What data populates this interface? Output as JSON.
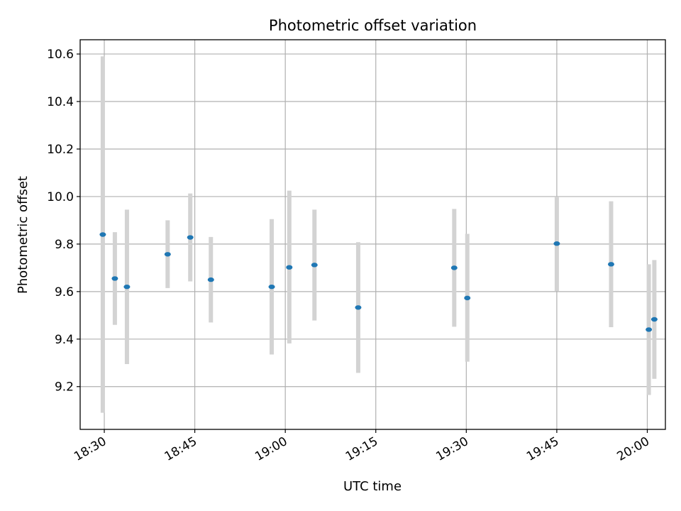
{
  "chart_data": {
    "type": "scatter",
    "title": "Photometric offset variation",
    "xlabel": "UTC time",
    "ylabel": "Photometric offset",
    "x_unit": "HH:MM UTC",
    "xlim": [
      "18:26",
      "20:03"
    ],
    "ylim": [
      9.02,
      10.66
    ],
    "x_ticks": [
      "18:30",
      "18:45",
      "19:00",
      "19:15",
      "19:30",
      "19:45",
      "20:00"
    ],
    "y_ticks": [
      9.2,
      9.4,
      9.6,
      9.8,
      10.0,
      10.2,
      10.4,
      10.6
    ],
    "y_tick_labels": [
      "9.2",
      "9.4",
      "9.6",
      "9.8",
      "10.0",
      "10.2",
      "10.4",
      "10.6"
    ],
    "grid": true,
    "marker_color": "#1f77b4",
    "errorbar_color": "#d3d3d3",
    "points": [
      {
        "x": "18:29:45",
        "y": 9.84,
        "yerr_low": 9.09,
        "yerr_high": 10.59
      },
      {
        "x": "18:31:45",
        "y": 9.655,
        "yerr_low": 9.46,
        "yerr_high": 9.85
      },
      {
        "x": "18:33:45",
        "y": 9.62,
        "yerr_low": 9.295,
        "yerr_high": 9.945
      },
      {
        "x": "18:40:30",
        "y": 9.757,
        "yerr_low": 9.615,
        "yerr_high": 9.9
      },
      {
        "x": "18:44:15",
        "y": 9.828,
        "yerr_low": 9.643,
        "yerr_high": 10.013
      },
      {
        "x": "18:47:40",
        "y": 9.65,
        "yerr_low": 9.47,
        "yerr_high": 9.83
      },
      {
        "x": "18:57:45",
        "y": 9.62,
        "yerr_low": 9.335,
        "yerr_high": 9.905
      },
      {
        "x": "19:00:40",
        "y": 9.702,
        "yerr_low": 9.382,
        "yerr_high": 10.025
      },
      {
        "x": "19:04:50",
        "y": 9.712,
        "yerr_low": 9.478,
        "yerr_high": 9.945
      },
      {
        "x": "19:12:05",
        "y": 9.533,
        "yerr_low": 9.258,
        "yerr_high": 9.808
      },
      {
        "x": "19:28:00",
        "y": 9.7,
        "yerr_low": 9.452,
        "yerr_high": 9.948
      },
      {
        "x": "19:30:10",
        "y": 9.573,
        "yerr_low": 9.305,
        "yerr_high": 9.843
      },
      {
        "x": "19:45:00",
        "y": 9.802,
        "yerr_low": 9.602,
        "yerr_high": 10.0
      },
      {
        "x": "19:54:00",
        "y": 9.715,
        "yerr_low": 9.45,
        "yerr_high": 9.98
      },
      {
        "x": "20:00:15",
        "y": 9.44,
        "yerr_low": 9.165,
        "yerr_high": 9.715
      },
      {
        "x": "20:01:10",
        "y": 9.483,
        "yerr_low": 9.233,
        "yerr_high": 9.733
      }
    ]
  }
}
